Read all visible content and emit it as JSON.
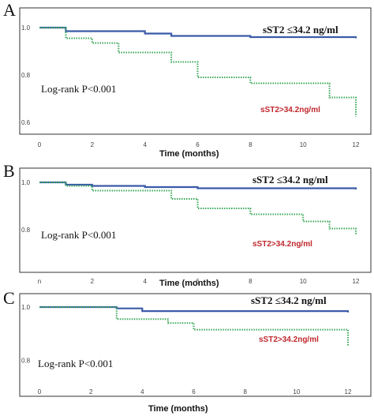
{
  "chart_data": [
    {
      "type": "line",
      "panel": "A",
      "xlabel": "Time (months)",
      "xlim": [
        0,
        12
      ],
      "ylim": [
        0.6,
        1.0
      ],
      "xticks": [
        "0",
        "2",
        "4",
        "6",
        "8",
        "10",
        "12"
      ],
      "yticks": [
        "1.0",
        "0.8",
        "0.6"
      ],
      "annotation": "Log-rank P<0.001",
      "series": [
        {
          "name": "sST2 ≤34.2 ng/ml",
          "color": "#3b5ba9",
          "style": "solid",
          "x": [
            0,
            1,
            4,
            5,
            8,
            12
          ],
          "y": [
            1.0,
            0.985,
            0.975,
            0.965,
            0.96,
            0.955
          ]
        },
        {
          "name": "sST2>34.2ng/ml",
          "color": "#3aa85a",
          "style": "dotted",
          "x": [
            0,
            1,
            2,
            3,
            5,
            6,
            8,
            11,
            12
          ],
          "y": [
            1.0,
            0.955,
            0.935,
            0.895,
            0.855,
            0.79,
            0.765,
            0.705,
            0.625
          ]
        }
      ]
    },
    {
      "type": "line",
      "panel": "B",
      "xlabel": "Time (months)",
      "xlim": [
        0,
        12
      ],
      "ylim": [
        0.7,
        1.0
      ],
      "xticks": [
        "n",
        "2",
        "4",
        "6",
        "8",
        "10",
        "12"
      ],
      "yticks": [
        "1.0",
        "0.8"
      ],
      "annotation": "Log-rank P<0.001",
      "series": [
        {
          "name": "sST2 ≤34.2 ng/ml",
          "color": "#3b5ba9",
          "style": "solid",
          "x": [
            0,
            1,
            2,
            4,
            6,
            12
          ],
          "y": [
            1.0,
            0.99,
            0.985,
            0.98,
            0.975,
            0.97
          ]
        },
        {
          "name": "sST2>34.2ng/ml",
          "color": "#3aa85a",
          "style": "dotted",
          "x": [
            0,
            1,
            2,
            5,
            6,
            8,
            10,
            11,
            12
          ],
          "y": [
            1.0,
            0.985,
            0.965,
            0.93,
            0.89,
            0.865,
            0.835,
            0.805,
            0.78
          ]
        }
      ]
    },
    {
      "type": "line",
      "panel": "C",
      "xlabel": "Time (months)",
      "xlim": [
        0,
        12
      ],
      "ylim": [
        0.7,
        1.0
      ],
      "xticks": [
        "0",
        "2",
        "4",
        "6",
        "8",
        "10",
        "12"
      ],
      "yticks": [
        "1.0",
        "0.8"
      ],
      "annotation": "Log-rank P<0.001",
      "series": [
        {
          "name": "sST2 ≤34.2 ng/ml",
          "color": "#3b5ba9",
          "style": "solid",
          "x": [
            0,
            3,
            4,
            12
          ],
          "y": [
            1.0,
            0.995,
            0.985,
            0.98
          ]
        },
        {
          "name": "sST2>34.2ng/ml",
          "color": "#3aa85a",
          "style": "dotted",
          "x": [
            0,
            3,
            5,
            6,
            12
          ],
          "y": [
            1.0,
            0.955,
            0.94,
            0.915,
            0.855
          ]
        }
      ]
    }
  ]
}
